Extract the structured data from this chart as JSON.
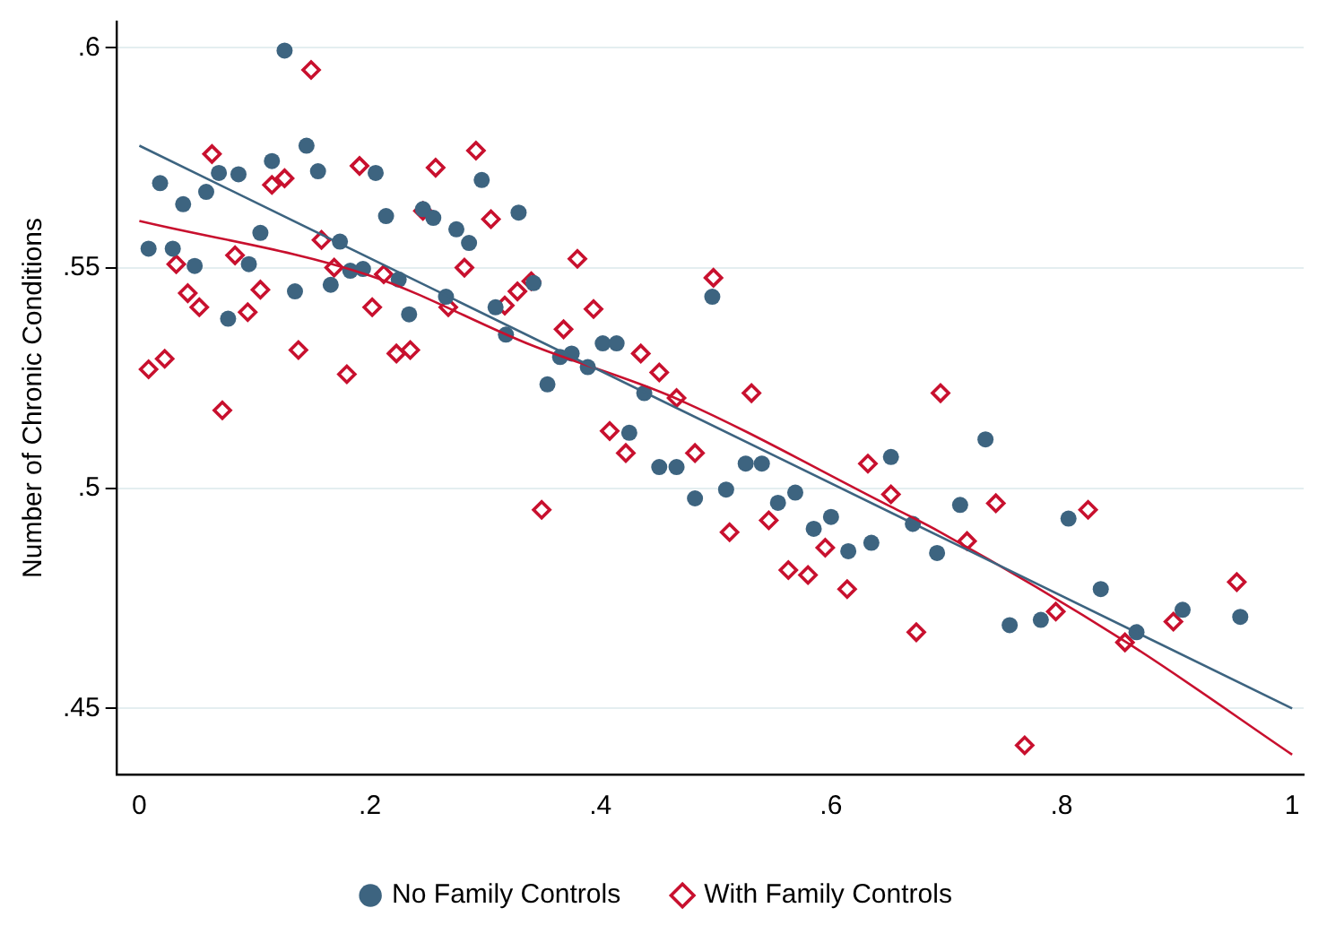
{
  "chart_data": {
    "type": "scatter",
    "ylabel": "Number of Chronic Conditions",
    "xlim": [
      -0.02,
      1.01
    ],
    "ylim": [
      0.435,
      0.606
    ],
    "xticks": [
      0,
      {
        "value": 0.2,
        "label": ".2"
      },
      {
        "value": 0.4,
        "label": ".4"
      },
      {
        "value": 0.6,
        "label": ".6"
      },
      {
        "value": 0.8,
        "label": ".8"
      },
      1
    ],
    "yticks": [
      {
        "value": 0.45,
        "label": ".45"
      },
      {
        "value": 0.5,
        "label": ".5"
      },
      {
        "value": 0.55,
        "label": ".55"
      },
      {
        "value": 0.6,
        "label": ".6"
      }
    ],
    "grid": "y",
    "legend": "bottom",
    "series": [
      {
        "name": "No Family Controls",
        "color": "#3d6480",
        "marker": "circle",
        "x": [
          0.008,
          0.018,
          0.029,
          0.038,
          0.048,
          0.058,
          0.069,
          0.077,
          0.086,
          0.095,
          0.105,
          0.115,
          0.126,
          0.135,
          0.145,
          0.155,
          0.166,
          0.174,
          0.183,
          0.194,
          0.205,
          0.214,
          0.225,
          0.234,
          0.246,
          0.255,
          0.266,
          0.275,
          0.286,
          0.297,
          0.309,
          0.318,
          0.329,
          0.342,
          0.354,
          0.365,
          0.375,
          0.389,
          0.402,
          0.414,
          0.425,
          0.438,
          0.451,
          0.466,
          0.482,
          0.497,
          0.509,
          0.526,
          0.54,
          0.554,
          0.569,
          0.585,
          0.6,
          0.615,
          0.635,
          0.652,
          0.671,
          0.692,
          0.712,
          0.734,
          0.755,
          0.782,
          0.806,
          0.834,
          0.865,
          0.905,
          0.955
        ],
        "values": [
          0.5544,
          0.5693,
          0.5544,
          0.5645,
          0.5505,
          0.5673,
          0.5716,
          0.5385,
          0.5713,
          0.5509,
          0.558,
          0.5743,
          0.5994,
          0.5447,
          0.5778,
          0.572,
          0.5462,
          0.556,
          0.5494,
          0.5498,
          0.5716,
          0.5618,
          0.5474,
          0.5395,
          0.5634,
          0.5614,
          0.5435,
          0.5588,
          0.5557,
          0.57,
          0.5411,
          0.5349,
          0.5626,
          0.5466,
          0.5236,
          0.5298,
          0.5306,
          0.5275,
          0.5329,
          0.5329,
          0.5126,
          0.5216,
          0.5048,
          0.5048,
          0.4977,
          0.5435,
          0.4997,
          0.5056,
          0.5056,
          0.4967,
          0.499,
          0.4908,
          0.4935,
          0.4857,
          0.4876,
          0.5071,
          0.4919,
          0.4853,
          0.4962,
          0.5111,
          0.4689,
          0.4701,
          0.4931,
          0.4771,
          0.4673,
          0.4724,
          0.4708
        ]
      },
      {
        "name": "With Family Controls",
        "color": "#c8102e",
        "marker": "diamond",
        "x": [
          0.008,
          0.022,
          0.032,
          0.042,
          0.052,
          0.063,
          0.072,
          0.083,
          0.094,
          0.105,
          0.115,
          0.126,
          0.138,
          0.149,
          0.158,
          0.169,
          0.18,
          0.191,
          0.202,
          0.212,
          0.223,
          0.235,
          0.246,
          0.257,
          0.268,
          0.282,
          0.292,
          0.305,
          0.317,
          0.328,
          0.34,
          0.349,
          0.368,
          0.38,
          0.394,
          0.408,
          0.422,
          0.435,
          0.451,
          0.466,
          0.482,
          0.498,
          0.512,
          0.531,
          0.546,
          0.563,
          0.58,
          0.595,
          0.614,
          0.632,
          0.652,
          0.674,
          0.695,
          0.718,
          0.743,
          0.768,
          0.795,
          0.823,
          0.855,
          0.897,
          0.952
        ],
        "values": [
          0.527,
          0.5294,
          0.5509,
          0.5443,
          0.5411,
          0.5759,
          0.5177,
          0.5529,
          0.54,
          0.5451,
          0.5689,
          0.5704,
          0.5314,
          0.595,
          0.5564,
          0.5501,
          0.5259,
          0.5732,
          0.5411,
          0.5486,
          0.5306,
          0.5314,
          0.563,
          0.5728,
          0.5411,
          0.5501,
          0.5767,
          0.5611,
          0.5415,
          0.5447,
          0.547,
          0.4951,
          0.5361,
          0.5521,
          0.5407,
          0.513,
          0.508,
          0.5306,
          0.5263,
          0.5205,
          0.508,
          0.5478,
          0.49,
          0.5216,
          0.4927,
          0.4814,
          0.4803,
          0.4865,
          0.4771,
          0.5056,
          0.4986,
          0.4673,
          0.5216,
          0.488,
          0.4966,
          0.4416,
          0.472,
          0.4951,
          0.465,
          0.4697,
          0.4787
        ]
      },
      {
        "type": "line",
        "color": "#3d6480",
        "marker": "none",
        "x": [
          0,
          1
        ],
        "values": [
          0.5778,
          0.45
        ]
      },
      {
        "type": "line",
        "color": "#c8102e",
        "marker": "none",
        "x": [
          0,
          0.2,
          0.34,
          0.462,
          0.649,
          0.695,
          0.857,
          1
        ],
        "values": [
          0.5607,
          0.5483,
          0.5325,
          0.5208,
          0.4962,
          0.49,
          0.4649,
          0.4395
        ]
      }
    ]
  }
}
